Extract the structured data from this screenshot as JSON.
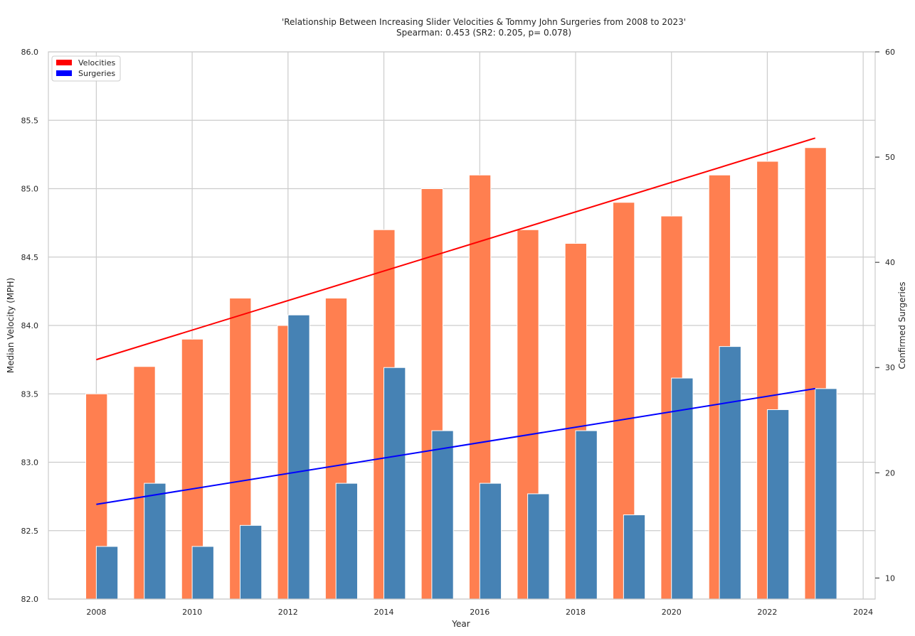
{
  "chart_data": {
    "type": "bar",
    "title_line1": "'Relationship Between Increasing Slider Velocities & Tommy John Surgeries from 2008 to 2023'",
    "title_line2": "Spearman: 0.453 (SR2: 0.205, p= 0.078)",
    "xlabel": "Year",
    "ylabel_left": "Median Velocity (MPH)",
    "ylabel_right": "Confirmed Surgeries",
    "x": [
      2008,
      2009,
      2010,
      2011,
      2012,
      2013,
      2014,
      2015,
      2016,
      2017,
      2018,
      2019,
      2020,
      2021,
      2022,
      2023
    ],
    "xlim": [
      2007,
      2024.25
    ],
    "ylim_left": [
      82.0,
      86.0
    ],
    "ylim_right": [
      8,
      60
    ],
    "x_ticks": [
      "2008",
      "2010",
      "2012",
      "2014",
      "2016",
      "2018",
      "2020",
      "2022",
      "2024"
    ],
    "y_ticks_left": [
      "82.0",
      "82.5",
      "83.0",
      "83.5",
      "84.0",
      "84.5",
      "85.0",
      "85.5",
      "86.0"
    ],
    "y_ticks_right": [
      "10",
      "20",
      "30",
      "40",
      "50",
      "60"
    ],
    "grid": true,
    "legend_position": "top-left",
    "legend": [
      {
        "label": "Velocities",
        "color": "#ff0000"
      },
      {
        "label": "Surgeries",
        "color": "#0000ff"
      }
    ],
    "series": [
      {
        "name": "Velocities",
        "axis": "left",
        "color": "#ff7f50",
        "values": [
          83.5,
          83.7,
          83.9,
          84.2,
          84.0,
          84.2,
          84.7,
          85.0,
          85.1,
          84.7,
          84.6,
          84.9,
          84.8,
          85.1,
          85.2,
          85.3
        ]
      },
      {
        "name": "Surgeries",
        "axis": "right",
        "color": "#4682b4",
        "values": [
          13,
          19,
          13,
          15,
          35,
          19,
          30,
          24,
          19,
          18,
          24,
          16,
          29,
          32,
          26,
          28
        ]
      }
    ],
    "trend_lines": [
      {
        "name": "Velocities",
        "axis": "left",
        "color": "#ff0000",
        "start": [
          2008,
          83.75
        ],
        "end": [
          2023,
          85.37
        ]
      },
      {
        "name": "Surgeries",
        "axis": "right",
        "color": "#0000ff",
        "start": [
          2008,
          17.0
        ],
        "end": [
          2023,
          28.0
        ]
      }
    ]
  }
}
